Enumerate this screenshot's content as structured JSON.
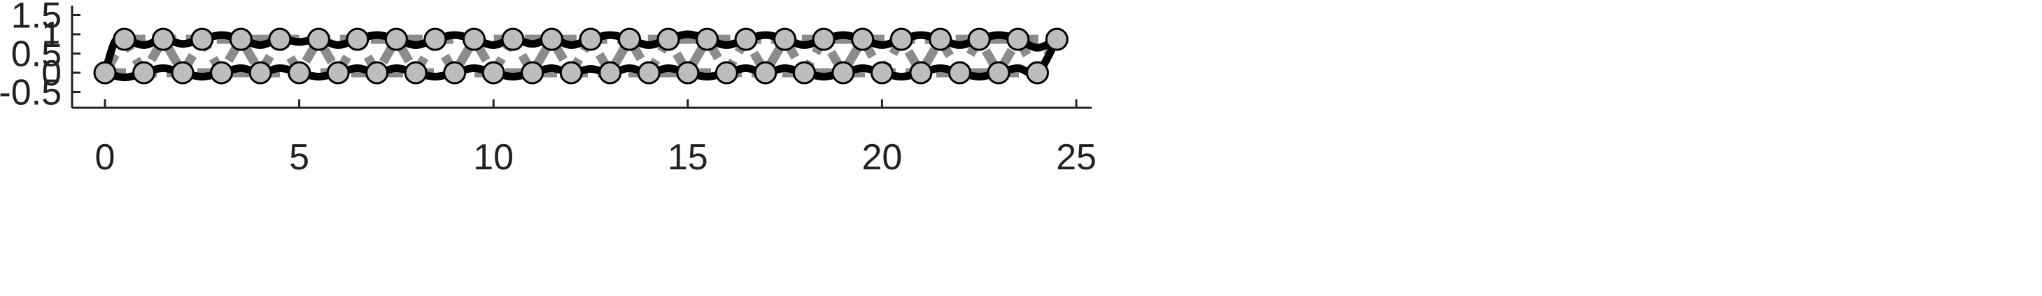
{
  "chart_data": {
    "type": "line",
    "title": "",
    "xlabel": "",
    "ylabel": "",
    "xlim": [
      0,
      25
    ],
    "ylim": [
      -0.8,
      1.75
    ],
    "x_ticks": [
      0,
      5,
      10,
      15,
      20,
      25
    ],
    "x_tick_labels": [
      "0",
      "5",
      "10",
      "15",
      "20",
      "25"
    ],
    "y_ticks": [
      1.5,
      1,
      0.5,
      0,
      -0.5
    ],
    "y_tick_labels": [
      "1.5",
      "1",
      "0.5",
      "0",
      "-0.5"
    ],
    "grid": false,
    "nodes": {
      "bottom": [
        {
          "x": 0,
          "y": 0
        },
        {
          "x": 1,
          "y": 0
        },
        {
          "x": 2,
          "y": 0
        },
        {
          "x": 3,
          "y": 0
        },
        {
          "x": 4,
          "y": 0
        },
        {
          "x": 5,
          "y": 0
        },
        {
          "x": 6,
          "y": 0
        },
        {
          "x": 7,
          "y": 0
        },
        {
          "x": 8,
          "y": 0
        },
        {
          "x": 9,
          "y": 0
        },
        {
          "x": 10,
          "y": 0
        },
        {
          "x": 11,
          "y": 0
        },
        {
          "x": 12,
          "y": 0
        },
        {
          "x": 13,
          "y": 0
        },
        {
          "x": 14,
          "y": 0
        },
        {
          "x": 15,
          "y": 0
        },
        {
          "x": 16,
          "y": 0
        },
        {
          "x": 17,
          "y": 0
        },
        {
          "x": 18,
          "y": 0
        },
        {
          "x": 19,
          "y": 0
        },
        {
          "x": 20,
          "y": 0
        },
        {
          "x": 21,
          "y": 0
        },
        {
          "x": 22,
          "y": 0
        },
        {
          "x": 23,
          "y": 0
        },
        {
          "x": 24,
          "y": 0
        }
      ],
      "top": [
        {
          "x": 0.5,
          "y": 0.87
        },
        {
          "x": 1.5,
          "y": 0.87
        },
        {
          "x": 2.5,
          "y": 0.87
        },
        {
          "x": 3.5,
          "y": 0.87
        },
        {
          "x": 4.5,
          "y": 0.87
        },
        {
          "x": 5.5,
          "y": 0.87
        },
        {
          "x": 6.5,
          "y": 0.87
        },
        {
          "x": 7.5,
          "y": 0.87
        },
        {
          "x": 8.5,
          "y": 0.87
        },
        {
          "x": 9.5,
          "y": 0.87
        },
        {
          "x": 10.5,
          "y": 0.87
        },
        {
          "x": 11.5,
          "y": 0.87
        },
        {
          "x": 12.5,
          "y": 0.87
        },
        {
          "x": 13.5,
          "y": 0.87
        },
        {
          "x": 14.5,
          "y": 0.87
        },
        {
          "x": 15.5,
          "y": 0.87
        },
        {
          "x": 16.5,
          "y": 0.87
        },
        {
          "x": 17.5,
          "y": 0.87
        },
        {
          "x": 18.5,
          "y": 0.87
        },
        {
          "x": 19.5,
          "y": 0.87
        },
        {
          "x": 20.5,
          "y": 0.87
        },
        {
          "x": 21.5,
          "y": 0.87
        },
        {
          "x": 22.5,
          "y": 0.87
        },
        {
          "x": 23.5,
          "y": 0.87
        },
        {
          "x": 24.5,
          "y": 0.87
        }
      ]
    },
    "series": [
      {
        "style": "dashed-straight",
        "x": [
          0,
          0.5,
          1,
          1.5,
          2,
          2.5,
          3,
          3.5,
          4,
          4.5,
          5,
          5.5,
          6,
          6.5,
          7,
          7.5,
          8,
          8.5,
          9,
          9.5,
          10,
          10.5,
          11,
          11.5,
          12,
          12.5,
          13,
          13.5,
          14,
          14.5,
          15,
          15.5,
          16,
          16.5,
          17,
          17.5,
          18,
          18.5,
          19,
          19.5,
          20,
          20.5,
          21,
          21.5,
          22,
          22.5,
          23,
          23.5,
          24,
          24.5
        ],
        "y": [
          0,
          0.87,
          0,
          0.87,
          0,
          0.87,
          0,
          0.87,
          0,
          0.87,
          0,
          0.87,
          0,
          0.87,
          0,
          0.87,
          0,
          0.87,
          0,
          0.87,
          0,
          0.87,
          0,
          0.87,
          0,
          0.87,
          0,
          0.87,
          0,
          0.87,
          0,
          0.87,
          0,
          0.87,
          0,
          0.87,
          0,
          0.87,
          0,
          0.87,
          0,
          0.87,
          0,
          0.87,
          0,
          0.87,
          0,
          0.87,
          0,
          0.87
        ]
      },
      {
        "style": "dashed-straight",
        "x": [
          0.5,
          24.5
        ],
        "y": [
          0.87,
          0.87
        ]
      },
      {
        "style": "dashed-straight",
        "x": [
          0,
          24
        ],
        "y": [
          0,
          0
        ]
      },
      {
        "style": "solid-curve",
        "x": [
          0,
          0.25,
          0.5,
          1,
          1.5,
          2,
          2.5,
          3,
          3.5,
          4,
          4.5,
          5,
          5.5,
          6,
          6.5,
          7,
          7.5,
          8,
          8.5,
          9,
          9.5,
          10,
          10.5,
          11,
          11.5,
          12,
          12.5,
          13,
          13.5,
          14,
          14.5,
          15,
          15.5,
          16,
          16.5,
          17,
          17.5,
          18,
          18.5,
          19,
          19.5,
          20,
          20.5,
          21,
          21.5,
          22,
          22.5,
          23,
          23.5,
          24,
          24.5
        ],
        "y": [
          0,
          0.8,
          0.87,
          0.72,
          0.87,
          0.75,
          0.87,
          0.98,
          0.87,
          0.72,
          0.87,
          0.8,
          0.87,
          0.72,
          0.87,
          0.98,
          0.87,
          0.72,
          0.87,
          0.98,
          0.87,
          0.72,
          0.87,
          0.75,
          0.87,
          0.72,
          0.87,
          0.98,
          0.87,
          0.72,
          0.87,
          1.0,
          0.87,
          0.72,
          0.87,
          0.98,
          0.87,
          0.72,
          0.87,
          0.98,
          0.87,
          0.72,
          0.87,
          0.98,
          0.87,
          0.72,
          0.87,
          0.98,
          0.87,
          0.65,
          0.87
        ]
      },
      {
        "style": "solid-curve",
        "x": [
          0,
          0.5,
          1,
          1.5,
          2,
          2.5,
          3,
          3.5,
          4,
          4.5,
          5,
          5.5,
          6,
          6.5,
          7,
          7.5,
          8,
          8.5,
          9,
          9.5,
          10,
          10.5,
          11,
          11.5,
          12,
          12.5,
          13,
          13.5,
          14,
          14.5,
          15,
          15.5,
          16,
          16.5,
          17,
          17.5,
          18,
          18.5,
          19,
          19.5,
          20,
          20.5,
          21,
          21.5,
          22,
          22.5,
          23,
          23.5,
          24,
          24.5
        ],
        "y": [
          0,
          -0.12,
          0,
          0.12,
          0,
          -0.1,
          0,
          0.12,
          0,
          0.12,
          0,
          -0.1,
          0,
          0.12,
          0,
          0.12,
          0,
          -0.1,
          0,
          0.12,
          0,
          -0.1,
          0,
          0.12,
          0,
          0.1,
          0,
          0.12,
          0,
          0.12,
          0,
          -0.1,
          0,
          0.12,
          0,
          0.12,
          0,
          -0.1,
          0,
          0.12,
          0,
          -0.1,
          0,
          0.12,
          0,
          -0.1,
          0,
          0.12,
          0,
          0.87
        ]
      }
    ]
  }
}
